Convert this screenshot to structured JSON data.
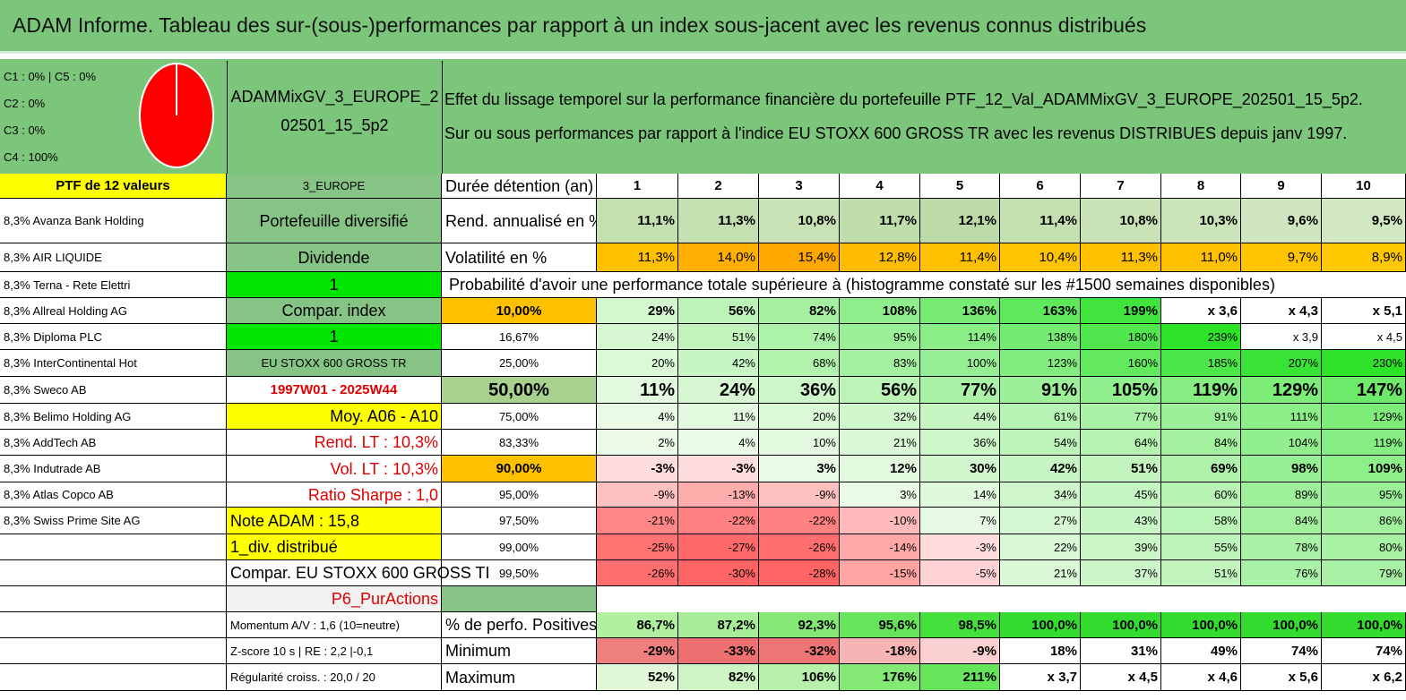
{
  "title": "ADAM Informe. Tableau des sur-(sous-)performances par rapport à un index sous-jacent avec les revenus connus distribués",
  "allocation": [
    "C1 : 0% | C5 : 0%",
    "C2 : 0%",
    "C3 : 0%",
    "C4 : 100%"
  ],
  "pie": {
    "color": "#ff0000",
    "share_c4": 1.0
  },
  "portfolio_name": [
    "ADAMMixGV_3_EUROPE_2",
    "02501_15_5p2"
  ],
  "description": [
    "Effet du lissage temporel sur la performance financière du portefeuille PTF_12_Val_ADAMMixGV_3_EUROPE_202501_15_5p2.",
    "Sur ou sous performances par rapport à l'indice EU STOXX 600 GROSS TR avec les revenus DISTRIBUES depuis janv 1997."
  ],
  "col_a": [
    "PTF de 12 valeurs",
    "8,3% Avanza Bank Holding",
    "8,3% AIR LIQUIDE",
    "8,3% Terna - Rete Elettri",
    "8,3% Allreal Holding AG",
    "8,3% Diploma PLC",
    "8,3% InterContinental Hot",
    "8,3% Sweco AB",
    "8,3% Belimo Holding AG",
    "8,3% AddTech AB",
    "8,3% Indutrade AB",
    "8,3% Atlas Copco AB",
    "8,3% Swiss Prime Site AG",
    "",
    "",
    "",
    "",
    "",
    ""
  ],
  "col_b": [
    "3_EUROPE",
    "Portefeuille diversifié",
    "Dividende",
    "1",
    "Compar. index",
    "1",
    "EU STOXX 600 GROSS TR",
    "1997W01 - 2025W44",
    "Moy. A06 - A10",
    "Rend. LT : 10,3%",
    "Vol. LT : 10,3%",
    "Ratio Sharpe : 1,0",
    "Note ADAM : 15,8",
    "1_div. distribué",
    "Compar. EU STOXX 600 GROSS TI",
    "P6_PurActions",
    "Momentum A/V : 1,6 (10=neutre)",
    "Z-score 10 s | RE : 2,2 |-0,1",
    "Régularité croiss. : 20,0 / 20"
  ],
  "header_label": "Durée détention (an)",
  "years": [
    "1",
    "2",
    "3",
    "4",
    "5",
    "6",
    "7",
    "8",
    "9",
    "10"
  ],
  "rend": {
    "label": "Rend. annualisé en %",
    "values": [
      "11,1%",
      "11,3%",
      "10,8%",
      "11,7%",
      "12,1%",
      "11,4%",
      "10,8%",
      "10,3%",
      "9,6%",
      "9,5%"
    ]
  },
  "vol": {
    "label": "Volatilité en %",
    "values": [
      "11,3%",
      "14,0%",
      "15,4%",
      "12,8%",
      "11,4%",
      "10,4%",
      "11,3%",
      "11,0%",
      "9,7%",
      "8,9%"
    ]
  },
  "prob_title": "Probabilité d'avoir une performance totale supérieure à (histogramme constaté sur les #1500 semaines disponibles)",
  "prob_rows": [
    {
      "p": "10,00%",
      "v": [
        "29%",
        "56%",
        "82%",
        "108%",
        "136%",
        "163%",
        "199%",
        "x 3,6",
        "x 4,3",
        "x 5,1"
      ]
    },
    {
      "p": "16,67%",
      "v": [
        "24%",
        "51%",
        "74%",
        "95%",
        "114%",
        "138%",
        "180%",
        "239%",
        "x 3,9",
        "x 4,5"
      ]
    },
    {
      "p": "25,00%",
      "v": [
        "20%",
        "42%",
        "68%",
        "83%",
        "100%",
        "123%",
        "160%",
        "185%",
        "207%",
        "230%"
      ]
    },
    {
      "p": "50,00%",
      "v": [
        "11%",
        "24%",
        "36%",
        "56%",
        "77%",
        "91%",
        "105%",
        "119%",
        "129%",
        "147%"
      ]
    },
    {
      "p": "75,00%",
      "v": [
        "4%",
        "11%",
        "20%",
        "32%",
        "44%",
        "61%",
        "77%",
        "91%",
        "111%",
        "129%"
      ]
    },
    {
      "p": "83,33%",
      "v": [
        "2%",
        "4%",
        "10%",
        "21%",
        "36%",
        "54%",
        "64%",
        "84%",
        "104%",
        "119%"
      ]
    },
    {
      "p": "90,00%",
      "v": [
        "-3%",
        "-3%",
        "3%",
        "12%",
        "30%",
        "42%",
        "51%",
        "69%",
        "98%",
        "109%"
      ]
    },
    {
      "p": "95,00%",
      "v": [
        "-9%",
        "-13%",
        "-9%",
        "3%",
        "14%",
        "34%",
        "45%",
        "60%",
        "89%",
        "95%"
      ]
    },
    {
      "p": "97,50%",
      "v": [
        "-21%",
        "-22%",
        "-22%",
        "-10%",
        "7%",
        "27%",
        "43%",
        "58%",
        "84%",
        "86%"
      ]
    },
    {
      "p": "99,00%",
      "v": [
        "-25%",
        "-27%",
        "-26%",
        "-14%",
        "-3%",
        "22%",
        "39%",
        "55%",
        "78%",
        "80%"
      ]
    },
    {
      "p": "99,50%",
      "v": [
        "-26%",
        "-30%",
        "-28%",
        "-15%",
        "-5%",
        "21%",
        "37%",
        "51%",
        "76%",
        "79%"
      ]
    }
  ],
  "stats": [
    {
      "label": "% de perfo. Positives",
      "v": [
        "86,7%",
        "87,2%",
        "92,3%",
        "95,6%",
        "98,5%",
        "100,0%",
        "100,0%",
        "100,0%",
        "100,0%",
        "100,0%"
      ]
    },
    {
      "label": "Minimum",
      "v": [
        "-29%",
        "-33%",
        "-32%",
        "-18%",
        "-9%",
        "18%",
        "31%",
        "49%",
        "74%",
        "74%"
      ]
    },
    {
      "label": "Maximum",
      "v": [
        "52%",
        "82%",
        "106%",
        "176%",
        "211%",
        "x 3,7",
        "x 4,5",
        "x 4,6",
        "x 5,6",
        "x 6,2"
      ]
    }
  ],
  "colors": {
    "title_green": "#7cc67c",
    "sheet_green": "#7cc67c",
    "yellow": "#ffff00",
    "orange": "#ffc000",
    "bright_green": "#00e600",
    "mid_green": "#86c486",
    "light_grey": "#f2f2f2",
    "red_text": "#e00000"
  },
  "heat": {
    "rend": [
      "#c4e0b0",
      "#c4e0b0",
      "#c8e2b6",
      "#c0deac",
      "#bcdba8",
      "#c4e0b0",
      "#c8e2b6",
      "#cce4ba",
      "#d0e6c0",
      "#d2e8c2"
    ],
    "vol": [
      "#ffc000",
      "#ffb000",
      "#ffa800",
      "#ffbc00",
      "#ffc000",
      "#ffc400",
      "#ffc000",
      "#ffc000",
      "#ffc400",
      "#ffc800"
    ],
    "stats0": [
      "#b0f0a0",
      "#a8ee98",
      "#84e874",
      "#66e45a",
      "#44e03c",
      "#33dc2e",
      "#33dc2e",
      "#33dc2e",
      "#33dc2e",
      "#33dc2e"
    ],
    "stats1": [
      "#f08080",
      "#ee7070",
      "#ef7474",
      "#f7b4b4",
      "#fbd0d0",
      "#ffffff",
      "#ffffff",
      "#ffffff",
      "#ffffff",
      "#ffffff"
    ],
    "stats2": [
      "#e0f8d8",
      "#cdf4c2",
      "#b7f0aa",
      "#84e874",
      "#66e45a",
      "#ffffff",
      "#ffffff",
      "#ffffff",
      "#ffffff",
      "#ffffff"
    ]
  }
}
